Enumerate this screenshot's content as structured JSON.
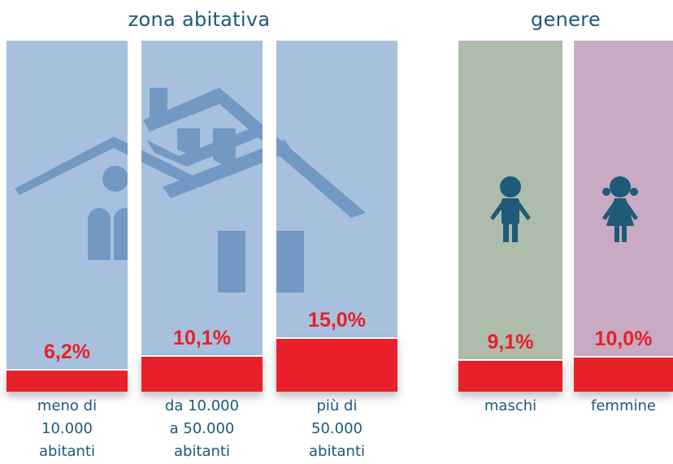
{
  "chart_data": [
    {
      "type": "bar",
      "title": "zona abitativa",
      "categories": [
        "meno di\n10.000\nabitanti",
        "da 10.000\na 50.000\nabitanti",
        "più di\n50.000\nabitanti"
      ],
      "values": [
        6.2,
        10.1,
        15.0
      ],
      "value_labels": [
        "6,2%",
        "10,1%",
        "15,0%"
      ],
      "column_colors": [
        "#a7c0dd",
        "#a7c0dd",
        "#a7c0dd"
      ],
      "color": "#e8202a"
    },
    {
      "type": "bar",
      "title": "genere",
      "categories": [
        "maschi",
        "femmine"
      ],
      "values": [
        9.1,
        10.0
      ],
      "value_labels": [
        "9,1%",
        "10,0%"
      ],
      "column_colors": [
        "#aebcab",
        "#c8aac3"
      ],
      "color": "#e8202a"
    }
  ]
}
